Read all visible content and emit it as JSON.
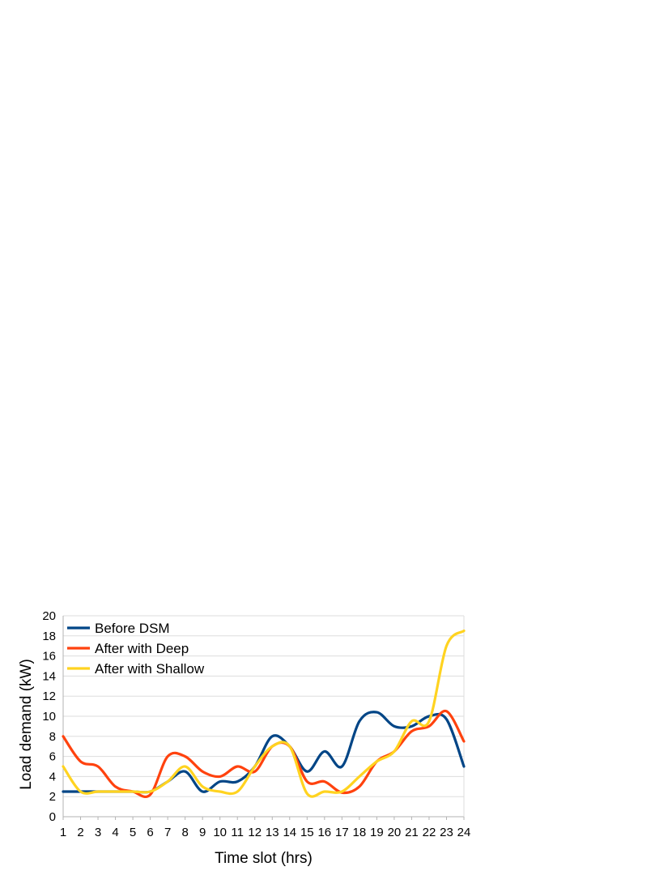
{
  "chart_data": {
    "type": "line",
    "title": "",
    "xlabel": "Time slot (hrs)",
    "ylabel": "Load demand (kW)",
    "categories": [
      "1",
      "2",
      "3",
      "4",
      "5",
      "6",
      "7",
      "8",
      "9",
      "10",
      "11",
      "12",
      "13",
      "14",
      "15",
      "16",
      "17",
      "18",
      "19",
      "20",
      "21",
      "22",
      "23",
      "24"
    ],
    "ylim": [
      0,
      20
    ],
    "yticks": [
      "0",
      "2",
      "4",
      "6",
      "8",
      "10",
      "12",
      "14",
      "16",
      "18",
      "20"
    ],
    "grid": true,
    "smooth": true,
    "legend_position": "top-left",
    "series": [
      {
        "name": "Before DSM",
        "color": "#004586",
        "values": [
          2.5,
          2.5,
          2.5,
          2.5,
          2.5,
          2.5,
          3.5,
          4.5,
          2.5,
          3.5,
          3.5,
          5,
          8,
          7,
          4.5,
          6.5,
          5,
          9.5,
          10.4,
          9,
          9,
          10,
          9.7,
          5
        ]
      },
      {
        "name": "After with Deep",
        "color": "#ff420e",
        "values": [
          8,
          5.5,
          5,
          3,
          2.5,
          2.2,
          6,
          6,
          4.5,
          4,
          5,
          4.5,
          7,
          7,
          3.5,
          3.5,
          2.4,
          3,
          5.5,
          6.5,
          8.5,
          9,
          10.5,
          7.5
        ]
      },
      {
        "name": "After with Shallow",
        "color": "#ffd320",
        "values": [
          5,
          2.5,
          2.5,
          2.5,
          2.5,
          2.5,
          3.5,
          5,
          3,
          2.5,
          2.5,
          5,
          7,
          7,
          2.3,
          2.5,
          2.5,
          4,
          5.5,
          6.5,
          9.5,
          9.5,
          17,
          18.5
        ]
      }
    ]
  }
}
